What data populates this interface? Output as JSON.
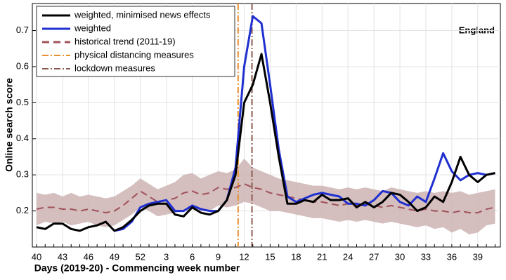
{
  "chart_data": {
    "type": "line",
    "xlabel": "Days (2019-20) - Commencing week number",
    "ylabel": "Online search score",
    "annotation": "England",
    "legend": "upper left",
    "grid": true,
    "categories": [
      "40",
      null,
      null,
      "43",
      null,
      null,
      "46",
      null,
      null,
      "49",
      null,
      null,
      "52",
      null,
      null,
      "3",
      null,
      null,
      "6",
      null,
      null,
      "9",
      null,
      null,
      "12",
      null,
      null,
      "15",
      null,
      null,
      "18",
      null,
      null,
      "21",
      null,
      null,
      "24",
      null,
      null,
      "27",
      null,
      null,
      "30",
      null,
      null,
      "33",
      null,
      null,
      "36",
      null,
      null,
      "39",
      null,
      null
    ],
    "ylim": [
      0.1,
      0.775
    ],
    "yticks": [
      0.2,
      0.3,
      0.4,
      0.5,
      0.6,
      0.7
    ],
    "series": [
      {
        "name": "weighted, minimised news effects",
        "color": "#000000",
        "values": [
          0.155,
          0.15,
          0.165,
          0.165,
          0.15,
          0.145,
          0.155,
          0.16,
          0.17,
          0.145,
          0.155,
          0.175,
          0.2,
          0.215,
          0.22,
          0.22,
          0.19,
          0.185,
          0.21,
          0.195,
          0.19,
          0.2,
          0.23,
          0.3,
          0.5,
          0.55,
          0.635,
          0.5,
          0.35,
          0.22,
          0.22,
          0.23,
          0.225,
          0.245,
          0.23,
          0.23,
          0.235,
          0.21,
          0.225,
          0.21,
          0.225,
          0.25,
          0.245,
          0.225,
          0.2,
          0.21,
          0.24,
          0.225,
          0.28,
          0.35,
          0.3,
          0.28,
          0.3,
          0.305
        ]
      },
      {
        "name": "weighted",
        "color": "#1f2fd0",
        "values": [
          null,
          null,
          null,
          null,
          null,
          null,
          null,
          null,
          null,
          0.145,
          0.15,
          0.17,
          0.21,
          0.22,
          0.225,
          0.23,
          0.2,
          0.2,
          0.215,
          0.205,
          0.2,
          0.2,
          0.23,
          0.32,
          0.6,
          0.74,
          0.72,
          0.55,
          0.37,
          0.24,
          0.225,
          0.235,
          0.245,
          0.25,
          0.245,
          0.24,
          0.22,
          0.22,
          0.215,
          0.23,
          0.255,
          0.25,
          0.225,
          0.215,
          0.24,
          0.225,
          0.29,
          0.36,
          0.31,
          0.285,
          0.3,
          0.305,
          0.3,
          0.305
        ]
      },
      {
        "name": "historical trend (2011-19)",
        "color": "#a0525a",
        "dash": true,
        "values": [
          0.205,
          0.21,
          0.21,
          0.205,
          0.205,
          0.2,
          0.205,
          0.2,
          0.195,
          0.2,
          0.215,
          0.235,
          0.255,
          0.24,
          0.225,
          0.23,
          0.235,
          0.25,
          0.255,
          0.245,
          0.25,
          0.265,
          0.26,
          0.265,
          0.275,
          0.265,
          0.26,
          0.25,
          0.245,
          0.24,
          0.235,
          0.23,
          0.225,
          0.225,
          0.22,
          0.215,
          0.22,
          0.215,
          0.22,
          0.215,
          0.21,
          0.215,
          0.21,
          0.205,
          0.2,
          0.205,
          0.2,
          0.2,
          0.195,
          0.2,
          0.195,
          0.195,
          0.205,
          0.21
        ],
        "band_color": "#cdb3b3",
        "upper": [
          0.25,
          0.245,
          0.25,
          0.24,
          0.25,
          0.24,
          0.245,
          0.24,
          0.235,
          0.24,
          0.255,
          0.27,
          0.29,
          0.275,
          0.26,
          0.27,
          0.28,
          0.3,
          0.305,
          0.29,
          0.3,
          0.31,
          0.305,
          0.315,
          0.345,
          0.32,
          0.31,
          0.3,
          0.29,
          0.285,
          0.28,
          0.275,
          0.27,
          0.27,
          0.265,
          0.26,
          0.265,
          0.26,
          0.265,
          0.26,
          0.255,
          0.265,
          0.26,
          0.255,
          0.25,
          0.255,
          0.25,
          0.255,
          0.25,
          0.255,
          0.245,
          0.25,
          0.255,
          0.26
        ],
        "lower": [
          0.16,
          0.17,
          0.165,
          0.17,
          0.16,
          0.165,
          0.17,
          0.16,
          0.155,
          0.16,
          0.175,
          0.19,
          0.21,
          0.2,
          0.185,
          0.19,
          0.195,
          0.2,
          0.205,
          0.2,
          0.2,
          0.215,
          0.21,
          0.215,
          0.225,
          0.22,
          0.21,
          0.2,
          0.2,
          0.195,
          0.19,
          0.185,
          0.18,
          0.18,
          0.175,
          0.17,
          0.175,
          0.17,
          0.175,
          0.17,
          0.165,
          0.17,
          0.165,
          0.16,
          0.155,
          0.16,
          0.15,
          0.155,
          0.14,
          0.15,
          0.135,
          0.14,
          0.16,
          0.165
        ]
      },
      {
        "name": "physical distancing measures",
        "color": "#e8902e",
        "vline_index": 23.3
      },
      {
        "name": "lockdown measures",
        "color": "#8a5a50",
        "vline_index": 24.9
      }
    ]
  }
}
